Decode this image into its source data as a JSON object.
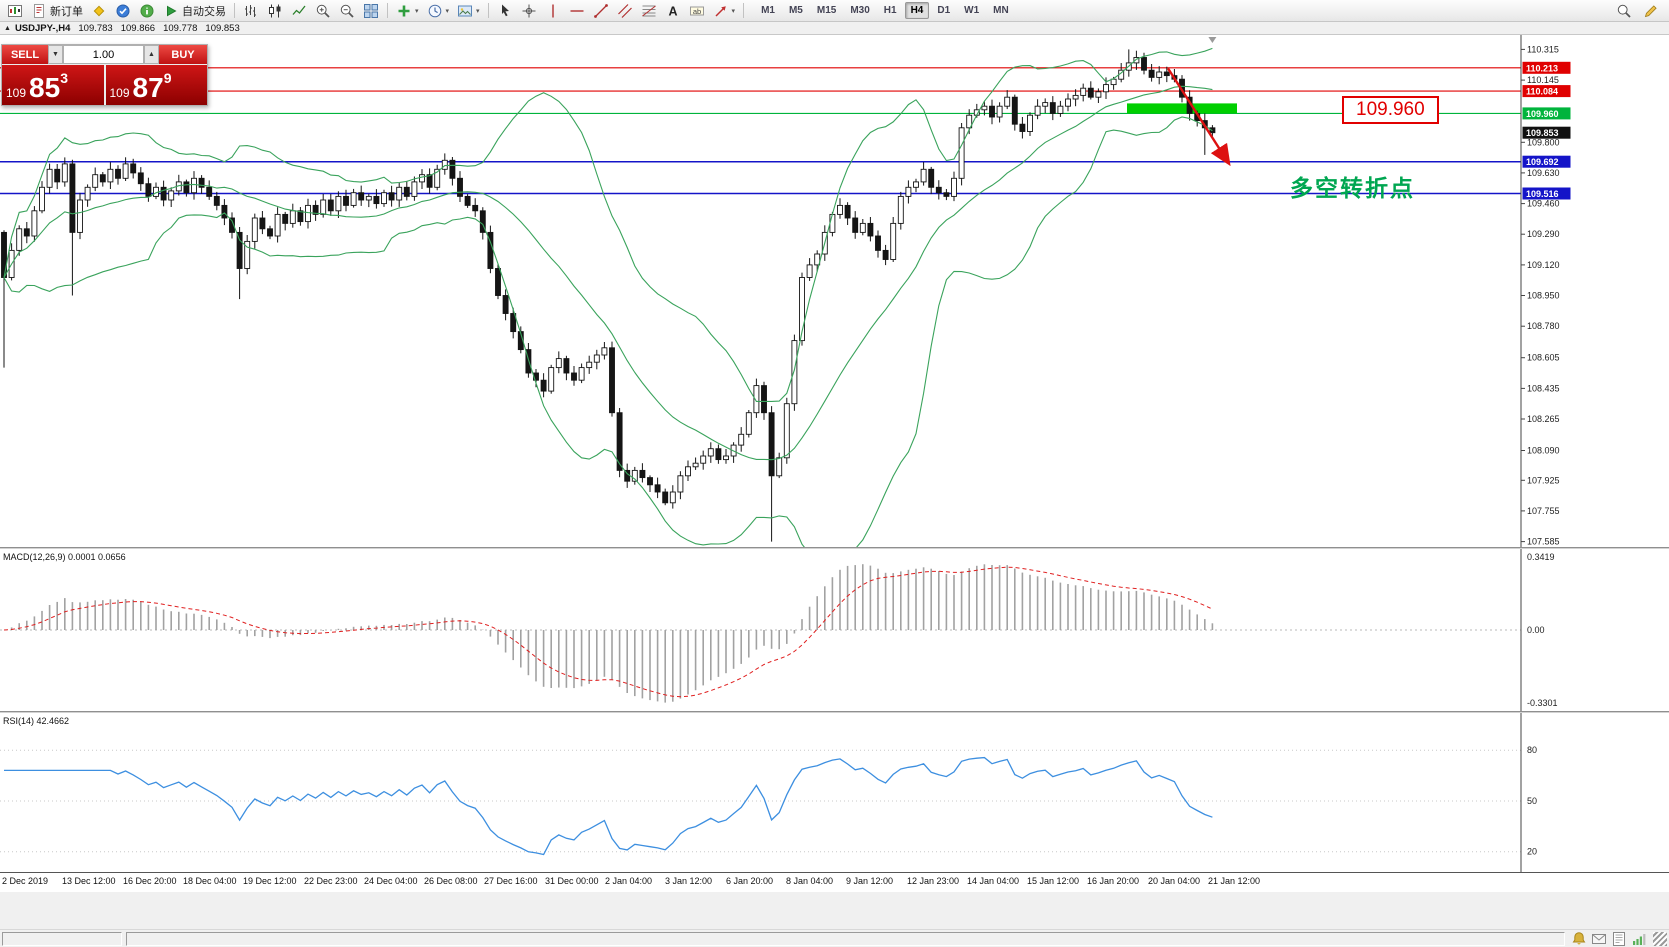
{
  "toolbar": {
    "groups": [
      [
        {
          "name": "new-chart-button",
          "kind": "newchart"
        },
        {
          "name": "new-order-button",
          "kind": "neworder",
          "label": "新订单"
        },
        {
          "name": "metaeditor-button",
          "kind": "editor"
        },
        {
          "name": "market-button",
          "kind": "market"
        },
        {
          "name": "community-button",
          "kind": "info"
        },
        {
          "name": "autotrading-button",
          "kind": "autoplay",
          "label": "自动交易"
        }
      ],
      [
        {
          "name": "bar-chart-button",
          "kind": "bars"
        },
        {
          "name": "candlestick-chart-button",
          "kind": "candles"
        },
        {
          "name": "line-chart-button",
          "kind": "linechart"
        },
        {
          "name": "zoom-in-button",
          "kind": "zoomin"
        },
        {
          "name": "zoom-out-button",
          "kind": "zoomout"
        },
        {
          "name": "tile-windows-button",
          "kind": "tile"
        }
      ],
      [
        {
          "name": "indicators-button",
          "kind": "indicators",
          "combo": true
        },
        {
          "name": "periods-button",
          "kind": "clock",
          "combo": true
        },
        {
          "name": "templates-button",
          "kind": "template",
          "combo": true
        }
      ],
      [
        {
          "name": "cursor-button",
          "kind": "cursor"
        },
        {
          "name": "crosshair-button",
          "kind": "crosshair"
        },
        {
          "name": "vline-button",
          "kind": "vline"
        },
        {
          "name": "hline-button",
          "kind": "hline"
        },
        {
          "name": "trendline-button",
          "kind": "trendline"
        },
        {
          "name": "channel-button",
          "kind": "channel"
        },
        {
          "name": "fibonacci-button",
          "kind": "fibo"
        },
        {
          "name": "text-button",
          "kind": "text"
        },
        {
          "name": "label-button",
          "kind": "textlabel"
        },
        {
          "name": "arrows-button",
          "kind": "arrows",
          "combo": true
        }
      ]
    ],
    "timeframes": {
      "items": [
        "M1",
        "M5",
        "M15",
        "M30",
        "H1",
        "H4",
        "D1",
        "W1",
        "MN"
      ],
      "active": "H4"
    },
    "right_icons": [
      {
        "name": "search-icon",
        "kind": "search"
      },
      {
        "name": "pencil-icon",
        "kind": "pencil"
      }
    ]
  },
  "symbol_header": {
    "marker": "▲",
    "symbol": "USDJPY-,H4",
    "open": "109.783",
    "high": "109.866",
    "low": "109.778",
    "close": "109.853"
  },
  "one_click": {
    "sell_label": "SELL",
    "buy_label": "BUY",
    "lot": "1.00",
    "down_arrow": "▼",
    "up_arrow": "▲",
    "sell_price": {
      "prefix": "109",
      "main": "85",
      "sup": "3"
    },
    "buy_price": {
      "prefix": "109",
      "main": "87",
      "sup": "9"
    }
  },
  "status_bar": {
    "icons": [
      {
        "name": "alert-icon",
        "kind": "bell"
      },
      {
        "name": "mailbox-icon",
        "kind": "mail"
      },
      {
        "name": "news-icon",
        "kind": "news"
      },
      {
        "name": "connection-icon",
        "kind": "signal"
      }
    ]
  },
  "chart_data": {
    "type": "candlestick",
    "symbol": "USDJPY-",
    "timeframe": "H4",
    "ohlc": {
      "open": 109.783,
      "high": 109.866,
      "low": 109.778,
      "close": 109.853
    },
    "ylim": [
      107.555,
      110.395
    ],
    "first_open": 109.3,
    "closes": [
      109.05,
      109.2,
      109.32,
      109.28,
      109.42,
      109.55,
      109.65,
      109.58,
      109.68,
      109.3,
      109.48,
      109.55,
      109.62,
      109.58,
      109.65,
      109.6,
      109.68,
      109.63,
      109.57,
      109.5,
      109.55,
      109.48,
      109.53,
      109.58,
      109.52,
      109.6,
      109.55,
      109.5,
      109.45,
      109.38,
      109.3,
      109.1,
      109.25,
      109.38,
      109.32,
      109.28,
      109.4,
      109.35,
      109.42,
      109.36,
      109.45,
      109.4,
      109.48,
      109.42,
      109.5,
      109.45,
      109.52,
      109.48,
      109.5,
      109.46,
      109.52,
      109.48,
      109.55,
      109.5,
      109.58,
      109.62,
      109.55,
      109.65,
      109.7,
      109.6,
      109.5,
      109.45,
      109.42,
      109.3,
      109.1,
      108.95,
      108.85,
      108.75,
      108.65,
      108.52,
      108.48,
      108.42,
      108.55,
      108.6,
      108.52,
      108.48,
      108.55,
      108.58,
      108.62,
      108.66,
      108.3,
      107.98,
      107.92,
      107.98,
      107.94,
      107.9,
      107.86,
      107.8,
      107.86,
      107.95,
      108.0,
      108.02,
      108.06,
      108.1,
      108.04,
      108.06,
      108.12,
      108.18,
      108.3,
      108.45,
      108.3,
      107.95,
      108.05,
      108.35,
      108.7,
      109.05,
      109.12,
      109.18,
      109.3,
      109.4,
      109.45,
      109.38,
      109.3,
      109.35,
      109.28,
      109.2,
      109.15,
      109.35,
      109.5,
      109.55,
      109.58,
      109.65,
      109.55,
      109.52,
      109.5,
      109.6,
      109.88,
      109.95,
      109.98,
      110.0,
      109.94,
      110.0,
      110.05,
      109.9,
      109.86,
      109.95,
      110.0,
      110.02,
      109.96,
      110.0,
      110.04,
      110.06,
      110.1,
      110.05,
      110.08,
      110.12,
      110.15,
      110.2,
      110.24,
      110.27,
      110.2,
      110.16,
      110.19,
      110.17,
      110.15,
      110.05,
      109.96,
      109.92,
      109.88,
      109.853
    ],
    "wick_overrides": {
      "0": {
        "low": 108.55
      },
      "9": {
        "low": 108.95
      },
      "31": {
        "low": 108.93
      },
      "101": {
        "low": 107.585
      },
      "148": {
        "high": 110.315
      },
      "158": {
        "low": 109.73
      }
    },
    "y_ticks": [
      "110.315",
      "110.145",
      "109.800",
      "109.630",
      "109.460",
      "109.290",
      "109.120",
      "108.950",
      "108.780",
      "108.605",
      "108.435",
      "108.265",
      "108.090",
      "107.925",
      "107.755",
      "107.585"
    ],
    "x_ticks": [
      "2 Dec 2019",
      "13 Dec 12:00",
      "16 Dec 20:00",
      "18 Dec 04:00",
      "19 Dec 12:00",
      "22 Dec 23:00",
      "24 Dec 04:00",
      "26 Dec 08:00",
      "27 Dec 16:00",
      "31 Dec 00:00",
      "2 Jan 04:00",
      "3 Jan 12:00",
      "6 Jan 20:00",
      "8 Jan 04:00",
      "9 Jan 12:00",
      "12 Jan 23:00",
      "14 Jan 04:00",
      "15 Jan 12:00",
      "16 Jan 20:00",
      "20 Jan 04:00",
      "21 Jan 12:00"
    ],
    "hlines": [
      {
        "price": 110.213,
        "color": "#e00000",
        "label": "110.213"
      },
      {
        "price": 110.084,
        "color": "#e00000",
        "label": "110.084"
      },
      {
        "price": 109.96,
        "color": "#00b43c",
        "label": "109.960"
      },
      {
        "price": 109.853,
        "color": "#111111",
        "label": "109.853",
        "current": true
      },
      {
        "price": 109.692,
        "color": "#1414c8",
        "label": "109.692"
      },
      {
        "price": 109.516,
        "color": "#1414c8",
        "label": "109.516"
      }
    ],
    "zone": {
      "price": 109.96,
      "x_start_frac": 0.741,
      "x_end_frac": 0.813,
      "color": "#00cf00"
    },
    "bollinger": {
      "period": 20,
      "deviation": 2,
      "color": "#3aa35c"
    },
    "annotations": {
      "price_label": {
        "text": "109.960",
        "price": 109.979,
        "x_frac": 0.882,
        "color": "#e10000"
      },
      "pivot_text": {
        "text": "多空转折点",
        "price": 109.575,
        "x_frac": 0.848,
        "color": "#00a651"
      },
      "arrow": {
        "x1_frac": 0.768,
        "price1": 110.21,
        "x2_frac": 0.8074,
        "price2": 109.69,
        "color": "#dd1111"
      }
    },
    "macd": {
      "label": "MACD(12,26,9) 0.0001 0.0656",
      "fast": 12,
      "slow": 26,
      "signal": 9,
      "ticks": [
        "0.3419",
        "0.00",
        "-0.3301"
      ]
    },
    "rsi": {
      "label": "RSI(14) 42.4662",
      "period": 14,
      "value": 42.4662,
      "ticks": [
        "80",
        "50",
        "20"
      ]
    }
  }
}
